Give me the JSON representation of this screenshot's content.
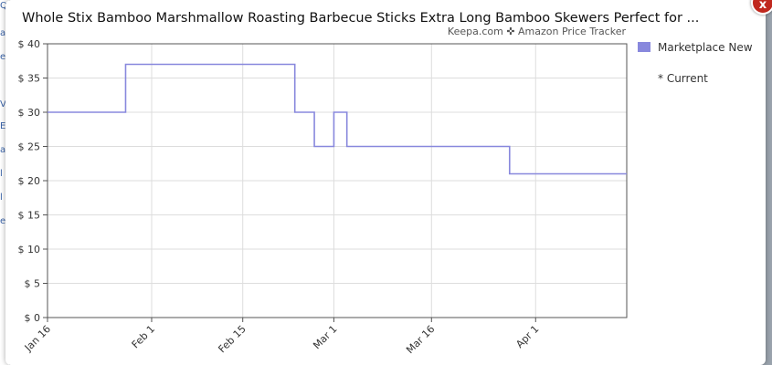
{
  "backdrop": {
    "fragments": [
      "Q",
      "a",
      "e",
      "",
      "V",
      "E",
      "a",
      "l",
      "l",
      "e"
    ]
  },
  "popup": {
    "close_label": "x"
  },
  "chart_data": {
    "type": "line",
    "title": "Whole Stix Bamboo Marshmallow Roasting Barbecue Sticks Extra Long Bamboo Skewers Perfect for ...",
    "subtitle": "Keepa.com ✜ Amazon Price Tracker",
    "xlabel": "",
    "ylabel": "",
    "x_ticks": [
      "Jan 16",
      "Feb 1",
      "Feb 15",
      "Mar 1",
      "Mar 16",
      "Apr 1"
    ],
    "y_ticks": [
      "$ 0",
      "$ 5",
      "$ 10",
      "$ 15",
      "$ 20",
      "$ 25",
      "$ 30",
      "$ 35",
      "$ 40"
    ],
    "ylim": [
      0,
      40
    ],
    "xlim": [
      "Jan 16",
      "Apr 15"
    ],
    "grid": true,
    "step": true,
    "legend_position": "top-right",
    "series": [
      {
        "name": "Marketplace New",
        "color": "#8888dd",
        "points": [
          {
            "x": "Jan 16",
            "y": 30
          },
          {
            "x": "Jan 28",
            "y": 37
          },
          {
            "x": "Feb 23",
            "y": 30
          },
          {
            "x": "Feb 26",
            "y": 25
          },
          {
            "x": "Mar 1",
            "y": 30
          },
          {
            "x": "Mar 3",
            "y": 25
          },
          {
            "x": "Mar 28",
            "y": 21
          },
          {
            "x": "Apr 15",
            "y": 21
          }
        ]
      }
    ],
    "legend_note": "* Current"
  }
}
